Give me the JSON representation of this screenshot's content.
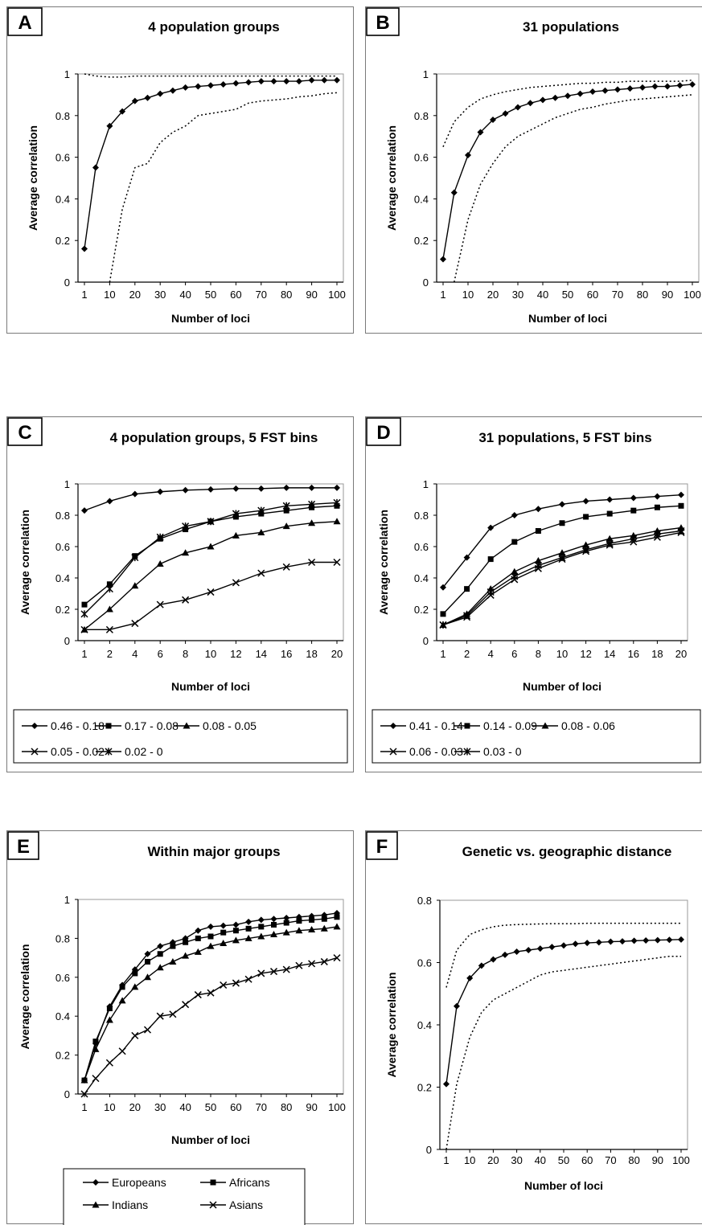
{
  "chart_data": [
    {
      "id": "A",
      "type": "line",
      "title": "4 population groups",
      "xlabel": "Number of loci",
      "ylabel": "Average correlation",
      "ylim": [
        0,
        1
      ],
      "yticks": [
        "0",
        "0.2",
        "0.4",
        "0.6",
        "0.8",
        "1"
      ],
      "xticks": [
        "1",
        "10",
        "20",
        "30",
        "40",
        "50",
        "60",
        "70",
        "80",
        "90",
        "100"
      ],
      "x": [
        1,
        5,
        10,
        15,
        20,
        25,
        30,
        35,
        40,
        45,
        50,
        55,
        60,
        65,
        70,
        75,
        80,
        85,
        90,
        95,
        100
      ],
      "series": [
        {
          "style": "solid",
          "marker": "diamond",
          "values": [
            0.16,
            0.55,
            0.75,
            0.82,
            0.87,
            0.885,
            0.905,
            0.92,
            0.935,
            0.94,
            0.945,
            0.95,
            0.955,
            0.96,
            0.965,
            0.965,
            0.965,
            0.965,
            0.97,
            0.97,
            0.97
          ]
        },
        {
          "style": "dotted",
          "values": [
            1.0,
            0.99,
            0.985,
            0.985,
            0.99,
            0.99,
            0.99,
            0.99,
            0.99,
            0.99,
            0.99,
            0.99,
            0.99,
            0.99,
            0.99,
            0.99,
            0.99,
            0.99,
            0.99,
            0.99,
            0.99
          ]
        },
        {
          "style": "dotted",
          "values": [
            null,
            null,
            0.0,
            0.35,
            0.55,
            0.57,
            0.67,
            0.72,
            0.75,
            0.8,
            0.81,
            0.82,
            0.83,
            0.86,
            0.87,
            0.875,
            0.88,
            0.89,
            0.895,
            0.905,
            0.91
          ]
        }
      ]
    },
    {
      "id": "B",
      "type": "line",
      "title": "31 populations",
      "xlabel": "Number of loci",
      "ylabel": "Average correlation",
      "ylim": [
        0,
        1
      ],
      "yticks": [
        "0",
        "0.2",
        "0.4",
        "0.6",
        "0.8",
        "1"
      ],
      "xticks": [
        "1",
        "10",
        "20",
        "30",
        "40",
        "50",
        "60",
        "70",
        "80",
        "90",
        "100"
      ],
      "x": [
        1,
        5,
        10,
        15,
        20,
        25,
        30,
        35,
        40,
        45,
        50,
        55,
        60,
        65,
        70,
        75,
        80,
        85,
        90,
        95,
        100
      ],
      "series": [
        {
          "style": "solid",
          "marker": "diamond",
          "values": [
            0.11,
            0.43,
            0.61,
            0.72,
            0.78,
            0.81,
            0.84,
            0.86,
            0.875,
            0.885,
            0.895,
            0.905,
            0.915,
            0.92,
            0.925,
            0.93,
            0.935,
            0.94,
            0.94,
            0.945,
            0.95
          ]
        },
        {
          "style": "dotted",
          "values": [
            0.65,
            0.77,
            0.84,
            0.88,
            0.9,
            0.915,
            0.925,
            0.935,
            0.94,
            0.945,
            0.95,
            0.955,
            0.955,
            0.96,
            0.96,
            0.965,
            0.965,
            0.965,
            0.965,
            0.965,
            0.97
          ]
        },
        {
          "style": "dotted",
          "values": [
            null,
            0.0,
            0.3,
            0.47,
            0.57,
            0.65,
            0.7,
            0.73,
            0.76,
            0.79,
            0.81,
            0.83,
            0.84,
            0.855,
            0.865,
            0.875,
            0.88,
            0.885,
            0.89,
            0.895,
            0.9
          ]
        }
      ]
    },
    {
      "id": "C",
      "type": "line",
      "title": "4 population groups, 5 FST bins",
      "xlabel": "Number of loci",
      "ylabel": "Average correlation",
      "ylim": [
        0,
        1
      ],
      "yticks": [
        "0",
        "0.2",
        "0.4",
        "0.6",
        "0.8",
        "1"
      ],
      "xticks": [
        "1",
        "2",
        "4",
        "6",
        "8",
        "10",
        "12",
        "14",
        "16",
        "18",
        "20"
      ],
      "x": [
        1,
        2,
        4,
        6,
        8,
        10,
        12,
        14,
        16,
        18,
        20
      ],
      "legend": {
        "position": "bottom",
        "rows": [
          [
            0,
            1,
            2
          ],
          [
            3,
            4
          ]
        ]
      },
      "series": [
        {
          "name": "0.46 - 0.18",
          "marker": "diamond",
          "values": [
            0.83,
            0.89,
            0.935,
            0.95,
            0.96,
            0.965,
            0.97,
            0.97,
            0.975,
            0.975,
            0.975
          ]
        },
        {
          "name": "0.17 - 0.08",
          "marker": "square",
          "values": [
            0.23,
            0.36,
            0.54,
            0.65,
            0.71,
            0.76,
            0.79,
            0.81,
            0.83,
            0.85,
            0.86
          ]
        },
        {
          "name": "0.08 - 0.05",
          "marker": "triangle",
          "values": [
            0.07,
            0.2,
            0.35,
            0.49,
            0.56,
            0.6,
            0.67,
            0.69,
            0.73,
            0.75,
            0.76
          ]
        },
        {
          "name": "0.05 - 0.02",
          "marker": "x",
          "values": [
            0.07,
            0.07,
            0.11,
            0.23,
            0.26,
            0.31,
            0.37,
            0.43,
            0.47,
            0.5,
            0.5
          ]
        },
        {
          "name": "0.02 - 0",
          "marker": "star",
          "values": [
            0.17,
            0.33,
            0.53,
            0.66,
            0.73,
            0.76,
            0.81,
            0.83,
            0.86,
            0.87,
            0.88
          ]
        }
      ]
    },
    {
      "id": "D",
      "type": "line",
      "title": "31 populations, 5 FST bins",
      "xlabel": "Number of loci",
      "ylabel": "Average correlation",
      "ylim": [
        0,
        1
      ],
      "yticks": [
        "0",
        "0.2",
        "0.4",
        "0.6",
        "0.8",
        "1"
      ],
      "xticks": [
        "1",
        "2",
        "4",
        "6",
        "8",
        "10",
        "12",
        "14",
        "16",
        "18",
        "20"
      ],
      "x": [
        1,
        2,
        4,
        6,
        8,
        10,
        12,
        14,
        16,
        18,
        20
      ],
      "legend": {
        "position": "bottom",
        "rows": [
          [
            0,
            1,
            2
          ],
          [
            3,
            4
          ]
        ]
      },
      "series": [
        {
          "name": "0.41 - 0.14",
          "marker": "diamond",
          "values": [
            0.34,
            0.53,
            0.72,
            0.8,
            0.84,
            0.87,
            0.89,
            0.9,
            0.91,
            0.92,
            0.93
          ]
        },
        {
          "name": "0.14 - 0.09",
          "marker": "square",
          "values": [
            0.17,
            0.33,
            0.52,
            0.63,
            0.7,
            0.75,
            0.79,
            0.81,
            0.83,
            0.85,
            0.86
          ]
        },
        {
          "name": "0.08 - 0.06",
          "marker": "triangle",
          "values": [
            0.1,
            0.17,
            0.33,
            0.44,
            0.51,
            0.56,
            0.61,
            0.65,
            0.67,
            0.7,
            0.72
          ]
        },
        {
          "name": "0.06 - 0.03",
          "marker": "x",
          "values": [
            0.1,
            0.15,
            0.29,
            0.39,
            0.46,
            0.52,
            0.57,
            0.61,
            0.63,
            0.66,
            0.69
          ]
        },
        {
          "name": "0.03 - 0",
          "marker": "star",
          "values": [
            0.1,
            0.16,
            0.31,
            0.41,
            0.48,
            0.53,
            0.58,
            0.62,
            0.65,
            0.68,
            0.7
          ]
        }
      ]
    },
    {
      "id": "E",
      "type": "line",
      "title": "Within major groups",
      "xlabel": "Number of loci",
      "ylabel": "Average correlation",
      "ylim": [
        0,
        1
      ],
      "yticks": [
        "0",
        "0.2",
        "0.4",
        "0.6",
        "0.8",
        "1"
      ],
      "xticks": [
        "1",
        "10",
        "20",
        "30",
        "40",
        "50",
        "60",
        "70",
        "80",
        "90",
        "100"
      ],
      "x": [
        1,
        5,
        10,
        15,
        20,
        25,
        30,
        35,
        40,
        45,
        50,
        55,
        60,
        65,
        70,
        75,
        80,
        85,
        90,
        95,
        100
      ],
      "legend": {
        "position": "bottom",
        "rows": [
          [
            0,
            1
          ],
          [
            2,
            3
          ]
        ]
      },
      "series": [
        {
          "name": "Europeans",
          "marker": "diamond",
          "values": [
            0.07,
            0.26,
            0.45,
            0.56,
            0.64,
            0.72,
            0.76,
            0.78,
            0.8,
            0.84,
            0.86,
            0.865,
            0.87,
            0.885,
            0.895,
            0.9,
            0.905,
            0.91,
            0.915,
            0.92,
            0.93
          ]
        },
        {
          "name": "Africans",
          "marker": "square",
          "values": [
            0.07,
            0.27,
            0.44,
            0.55,
            0.62,
            0.68,
            0.72,
            0.76,
            0.78,
            0.8,
            0.81,
            0.83,
            0.84,
            0.85,
            0.86,
            0.87,
            0.88,
            0.89,
            0.895,
            0.9,
            0.91
          ]
        },
        {
          "name": "Indians",
          "marker": "triangle",
          "values": [
            0.07,
            0.23,
            0.38,
            0.48,
            0.55,
            0.6,
            0.65,
            0.68,
            0.71,
            0.73,
            0.76,
            0.775,
            0.79,
            0.8,
            0.81,
            0.82,
            0.83,
            0.84,
            0.845,
            0.85,
            0.86
          ]
        },
        {
          "name": "Asians",
          "marker": "x",
          "values": [
            0.0,
            0.08,
            0.16,
            0.22,
            0.3,
            0.33,
            0.4,
            0.41,
            0.46,
            0.51,
            0.52,
            0.56,
            0.57,
            0.59,
            0.62,
            0.63,
            0.64,
            0.66,
            0.67,
            0.68,
            0.7
          ]
        }
      ]
    },
    {
      "id": "F",
      "type": "line",
      "title": "Genetic vs. geographic distance",
      "xlabel": "Number of loci",
      "ylabel": "Average correlation",
      "ylim": [
        0,
        0.8
      ],
      "yticks": [
        "0",
        "0.2",
        "0.4",
        "0.6",
        "0.8"
      ],
      "xticks": [
        "1",
        "10",
        "20",
        "30",
        "40",
        "50",
        "60",
        "70",
        "80",
        "90",
        "100"
      ],
      "x": [
        1,
        5,
        10,
        15,
        20,
        25,
        30,
        35,
        40,
        45,
        50,
        55,
        60,
        65,
        70,
        75,
        80,
        85,
        90,
        95,
        100
      ],
      "series": [
        {
          "style": "solid",
          "marker": "diamond",
          "values": [
            0.21,
            0.46,
            0.55,
            0.59,
            0.61,
            0.625,
            0.635,
            0.64,
            0.645,
            0.65,
            0.655,
            0.66,
            0.663,
            0.665,
            0.667,
            0.668,
            0.67,
            0.671,
            0.672,
            0.673,
            0.674
          ]
        },
        {
          "style": "dotted",
          "values": [
            0.52,
            0.64,
            0.69,
            0.705,
            0.715,
            0.72,
            0.722,
            0.723,
            0.724,
            0.725,
            0.725,
            0.725,
            0.726,
            0.726,
            0.726,
            0.726,
            0.726,
            0.726,
            0.726,
            0.726,
            0.726
          ]
        },
        {
          "style": "dotted",
          "values": [
            0.0,
            0.21,
            0.36,
            0.44,
            0.48,
            0.5,
            0.52,
            0.54,
            0.56,
            0.57,
            0.575,
            0.58,
            0.585,
            0.59,
            0.595,
            0.6,
            0.605,
            0.61,
            0.615,
            0.62,
            0.62
          ]
        }
      ]
    }
  ]
}
